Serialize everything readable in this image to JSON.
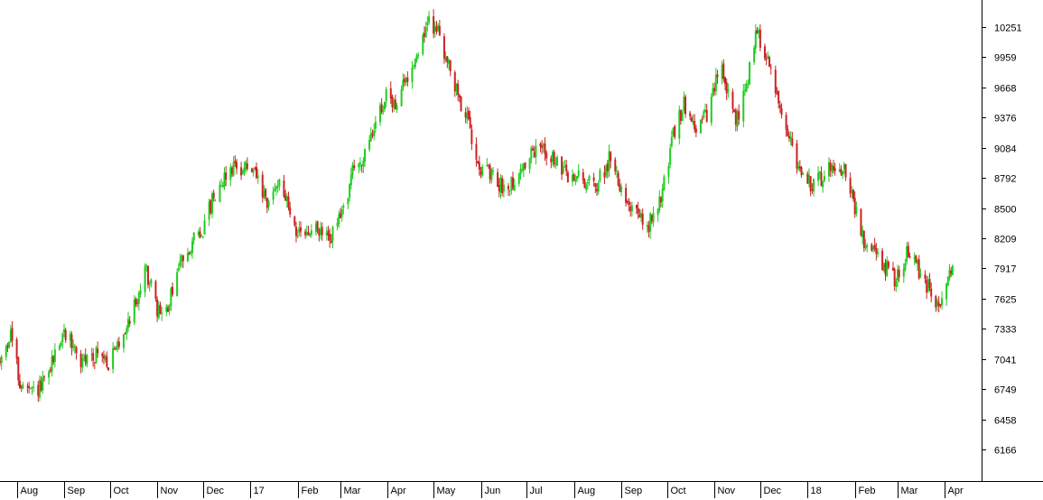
{
  "chart_data": {
    "type": "candlestick",
    "title": "",
    "xlabel": "",
    "ylabel": "",
    "up_color": "#22cc22",
    "down_color": "#cc2222",
    "ylim": [
      5950,
      10500
    ],
    "y_ticks": [
      6166,
      6458,
      6749,
      7041,
      7333,
      7625,
      7917,
      8209,
      8500,
      8792,
      9084,
      9376,
      9668,
      9959,
      10251
    ],
    "y_tick_labels": [
      "6166",
      "6458",
      "6749",
      "7041",
      "7333",
      "7625",
      "7917",
      "8209",
      "8500",
      "8792",
      "9084",
      "9376",
      "9668",
      "9959",
      "10251"
    ],
    "x_start": "2016-07-21",
    "x_end": "2018-04-25",
    "x_tick_labels": [
      "Aug",
      "Sep",
      "Oct",
      "Nov",
      "Dec",
      "17",
      "Feb",
      "Mar",
      "Apr",
      "May",
      "Jun",
      "Jul",
      "Aug",
      "Sep",
      "Oct",
      "Nov",
      "Dec",
      "18",
      "Feb",
      "Mar",
      "Apr"
    ],
    "x_tick_dates": [
      "2016-08-01",
      "2016-09-01",
      "2016-10-01",
      "2016-11-01",
      "2016-12-01",
      "2017-01-01",
      "2017-02-01",
      "2017-03-01",
      "2017-04-01",
      "2017-05-01",
      "2017-06-01",
      "2017-07-01",
      "2017-08-01",
      "2017-09-01",
      "2017-10-01",
      "2017-11-01",
      "2017-12-01",
      "2018-01-01",
      "2018-02-01",
      "2018-03-01",
      "2018-04-01"
    ],
    "price_path": {
      "dates": [
        "2016-07-21",
        "2016-07-28",
        "2016-08-03",
        "2016-08-10",
        "2016-08-20",
        "2016-08-28",
        "2016-09-03",
        "2016-09-12",
        "2016-09-22",
        "2016-10-01",
        "2016-10-10",
        "2016-10-18",
        "2016-10-25",
        "2016-11-01",
        "2016-11-08",
        "2016-11-12",
        "2016-11-20",
        "2016-12-01",
        "2016-12-10",
        "2016-12-20",
        "2016-12-28",
        "2017-01-05",
        "2017-01-12",
        "2017-01-20",
        "2017-01-28",
        "2017-02-03",
        "2017-02-12",
        "2017-02-22",
        "2017-03-01",
        "2017-03-10",
        "2017-03-18",
        "2017-03-25",
        "2017-04-01",
        "2017-04-05",
        "2017-04-12",
        "2017-04-20",
        "2017-04-28",
        "2017-05-05",
        "2017-05-12",
        "2017-05-22",
        "2017-06-01",
        "2017-06-08",
        "2017-06-15",
        "2017-06-25",
        "2017-07-03",
        "2017-07-12",
        "2017-07-22",
        "2017-07-28",
        "2017-08-05",
        "2017-08-15",
        "2017-08-25",
        "2017-09-01",
        "2017-09-08",
        "2017-09-18",
        "2017-09-27",
        "2017-10-05",
        "2017-10-12",
        "2017-10-20",
        "2017-10-28",
        "2017-11-05",
        "2017-11-15",
        "2017-11-22",
        "2017-11-28",
        "2017-12-05",
        "2017-12-12",
        "2017-12-20",
        "2017-12-28",
        "2018-01-05",
        "2018-01-15",
        "2018-01-25",
        "2018-02-01",
        "2018-02-08",
        "2018-02-18",
        "2018-02-28",
        "2018-03-08",
        "2018-03-15",
        "2018-03-22",
        "2018-03-29",
        "2018-04-03",
        "2018-04-06"
      ],
      "values": [
        7000,
        7300,
        6800,
        6700,
        6800,
        7200,
        7300,
        7000,
        7100,
        7000,
        7300,
        7600,
        7900,
        7500,
        7500,
        7800,
        8100,
        8300,
        8700,
        8900,
        8900,
        8800,
        8500,
        8800,
        8400,
        8200,
        8300,
        8200,
        8400,
        8900,
        9000,
        9400,
        9600,
        9500,
        9700,
        10000,
        10300,
        10200,
        9800,
        9400,
        8900,
        8800,
        8700,
        8800,
        9000,
        9100,
        8900,
        8800,
        8800,
        8700,
        9000,
        8700,
        8500,
        8300,
        8600,
        9200,
        9500,
        9300,
        9400,
        9900,
        9300,
        9700,
        10200,
        10000,
        9600,
        9200,
        8800,
        8700,
        8900,
        8900,
        8500,
        8100,
        8000,
        7800,
        8100,
        7900,
        7700,
        7500,
        7800,
        8000
      ]
    }
  }
}
